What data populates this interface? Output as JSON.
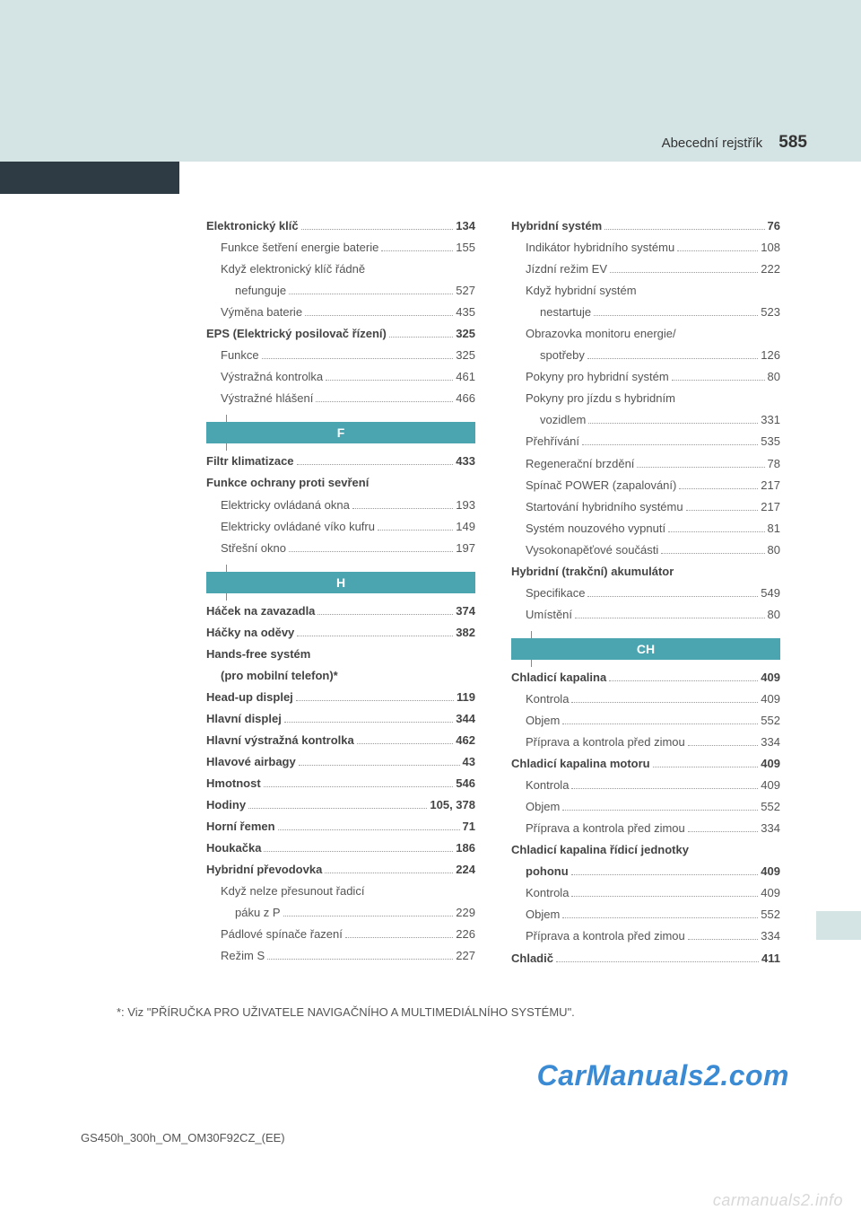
{
  "header": {
    "section": "Abecední rejstřík",
    "page": "585"
  },
  "footnote": "*: Viz \"PŘÍRUČKA PRO UŽIVATELE NAVIGAČNÍHO A MULTIMEDIÁLNÍHO SYSTÉMU\".",
  "watermark": "CarManuals2.com",
  "doc_code": "GS450h_300h_OM_OM30F92CZ_(EE)",
  "bottom_watermark": "carmanuals2.info",
  "colors": {
    "top_band": "#d4e3e3",
    "dark_band": "#2e3b44",
    "section_head": "#4aa5b0",
    "text": "#555555",
    "watermark": "#3b8bd4"
  },
  "left_col": [
    {
      "label": "Elektronický klíč",
      "page": "134",
      "bold": true,
      "indent": 0
    },
    {
      "label": "Funkce šetření energie baterie",
      "page": "155",
      "indent": 1
    },
    {
      "label": "Když elektronický klíč řádně",
      "indent": 1,
      "nopage": true
    },
    {
      "label": "nefunguje",
      "page": "527",
      "indent": 2
    },
    {
      "label": "Výměna baterie",
      "page": "435",
      "indent": 1
    },
    {
      "label": "EPS (Elektrický posilovač řízení)",
      "page": "325",
      "bold": true,
      "indent": 0
    },
    {
      "label": "Funkce",
      "page": "325",
      "indent": 1
    },
    {
      "label": "Výstražná kontrolka",
      "page": "461",
      "indent": 1
    },
    {
      "label": "Výstražné hlášení",
      "page": "466",
      "indent": 1
    },
    {
      "head": "F"
    },
    {
      "label": "Filtr klimatizace",
      "page": "433",
      "bold": true,
      "indent": 0
    },
    {
      "label": "Funkce ochrany proti sevření",
      "bold": true,
      "indent": 0,
      "nopage": true
    },
    {
      "label": "Elektricky ovládaná okna",
      "page": "193",
      "indent": 1
    },
    {
      "label": "Elektricky ovládané víko kufru",
      "page": "149",
      "indent": 1
    },
    {
      "label": "Střešní okno",
      "page": "197",
      "indent": 1
    },
    {
      "head": "H"
    },
    {
      "label": "Háček na zavazadla",
      "page": "374",
      "bold": true,
      "indent": 0
    },
    {
      "label": "Háčky na oděvy",
      "page": "382",
      "bold": true,
      "indent": 0
    },
    {
      "label": "Hands-free systém",
      "bold": true,
      "indent": 0,
      "nopage": true
    },
    {
      "label": "(pro mobilní telefon)*",
      "bold": true,
      "indent": 1,
      "nopage": true
    },
    {
      "label": "Head-up displej",
      "page": "119",
      "bold": true,
      "indent": 0
    },
    {
      "label": "Hlavní displej",
      "page": "344",
      "bold": true,
      "indent": 0
    },
    {
      "label": "Hlavní výstražná kontrolka",
      "page": "462",
      "bold": true,
      "indent": 0
    },
    {
      "label": "Hlavové airbagy",
      "page": "43",
      "bold": true,
      "indent": 0
    },
    {
      "label": "Hmotnost",
      "page": "546",
      "bold": true,
      "indent": 0
    },
    {
      "label": "Hodiny",
      "page": "105, 378",
      "bold": true,
      "indent": 0
    },
    {
      "label": "Horní řemen",
      "page": "71",
      "bold": true,
      "indent": 0
    },
    {
      "label": "Houkačka",
      "page": "186",
      "bold": true,
      "indent": 0
    },
    {
      "label": "Hybridní převodovka",
      "page": "224",
      "bold": true,
      "indent": 0
    },
    {
      "label": "Když nelze přesunout řadicí",
      "indent": 1,
      "nopage": true
    },
    {
      "label": "páku z P",
      "page": "229",
      "indent": 2
    },
    {
      "label": "Pádlové spínače řazení",
      "page": "226",
      "indent": 1
    },
    {
      "label": "Režim S",
      "page": "227",
      "indent": 1
    }
  ],
  "right_col": [
    {
      "label": "Hybridní systém",
      "page": "76",
      "bold": true,
      "indent": 0
    },
    {
      "label": "Indikátor hybridního systému",
      "page": "108",
      "indent": 1
    },
    {
      "label": "Jízdní režim EV",
      "page": "222",
      "indent": 1
    },
    {
      "label": "Když hybridní systém",
      "indent": 1,
      "nopage": true
    },
    {
      "label": "nestartuje",
      "page": "523",
      "indent": 2
    },
    {
      "label": "Obrazovka monitoru energie/",
      "indent": 1,
      "nopage": true
    },
    {
      "label": "spotřeby",
      "page": "126",
      "indent": 2
    },
    {
      "label": "Pokyny pro hybridní systém",
      "page": "80",
      "indent": 1
    },
    {
      "label": "Pokyny pro jízdu s hybridním",
      "indent": 1,
      "nopage": true
    },
    {
      "label": "vozidlem",
      "page": "331",
      "indent": 2
    },
    {
      "label": "Přehřívání",
      "page": "535",
      "indent": 1
    },
    {
      "label": "Regenerační brzdění",
      "page": "78",
      "indent": 1
    },
    {
      "label": "Spínač POWER (zapalování)",
      "page": "217",
      "indent": 1
    },
    {
      "label": "Startování hybridního systému",
      "page": "217",
      "indent": 1
    },
    {
      "label": "Systém nouzového vypnutí",
      "page": "81",
      "indent": 1
    },
    {
      "label": "Vysokonapěťové součásti",
      "page": "80",
      "indent": 1
    },
    {
      "label": "Hybridní (trakční) akumulátor",
      "bold": true,
      "indent": 0,
      "nopage": true
    },
    {
      "label": "Specifikace",
      "page": "549",
      "indent": 1
    },
    {
      "label": "Umístění",
      "page": "80",
      "indent": 1
    },
    {
      "head": "CH"
    },
    {
      "label": "Chladicí kapalina",
      "page": "409",
      "bold": true,
      "indent": 0
    },
    {
      "label": "Kontrola",
      "page": "409",
      "indent": 1
    },
    {
      "label": "Objem",
      "page": "552",
      "indent": 1
    },
    {
      "label": "Příprava a kontrola před zimou",
      "page": "334",
      "indent": 1
    },
    {
      "label": "Chladicí kapalina motoru",
      "page": "409",
      "bold": true,
      "indent": 0
    },
    {
      "label": "Kontrola",
      "page": "409",
      "indent": 1
    },
    {
      "label": "Objem",
      "page": "552",
      "indent": 1
    },
    {
      "label": "Příprava a kontrola před zimou",
      "page": "334",
      "indent": 1
    },
    {
      "label": "Chladicí kapalina řídicí jednotky",
      "bold": true,
      "indent": 0,
      "nopage": true
    },
    {
      "label": "pohonu",
      "page": "409",
      "bold": true,
      "indent": 1
    },
    {
      "label": "Kontrola",
      "page": "409",
      "indent": 1
    },
    {
      "label": "Objem",
      "page": "552",
      "indent": 1
    },
    {
      "label": "Příprava a kontrola před zimou",
      "page": "334",
      "indent": 1
    },
    {
      "label": "Chladič",
      "page": "411",
      "bold": true,
      "indent": 0
    }
  ]
}
